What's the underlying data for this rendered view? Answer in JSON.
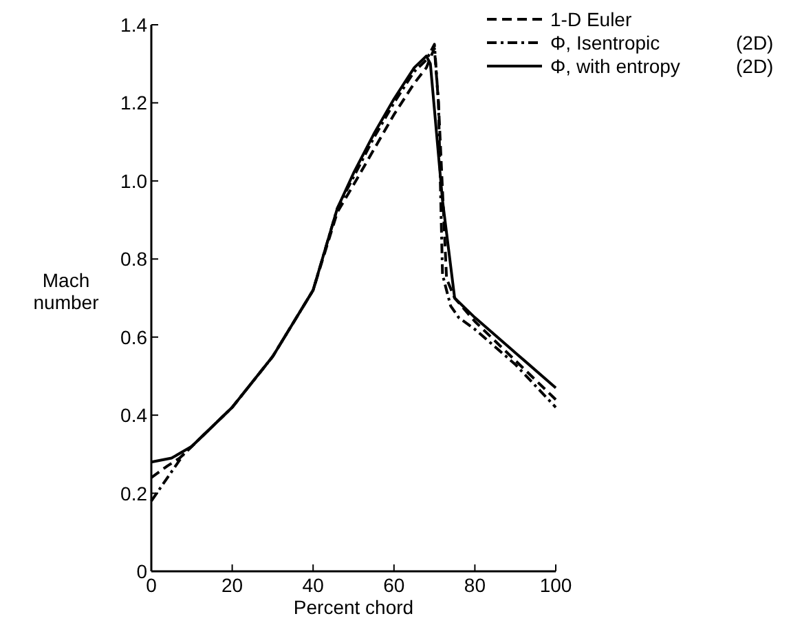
{
  "chart_data": {
    "type": "line",
    "xlabel": "Percent chord",
    "ylabel": "Mach number",
    "xlim": [
      0,
      100
    ],
    "xticks": [
      0,
      20,
      40,
      60,
      80,
      100
    ],
    "ylim": [
      0,
      1.4
    ],
    "yticks": [
      0,
      0.2,
      0.4,
      0.6,
      0.8,
      {
        "value": 1,
        "label": "1.0"
      },
      1.2,
      1.4
    ],
    "grid": false,
    "legend": "top right",
    "series": [
      {
        "name": "1-D Euler",
        "color": "#000000",
        "line_style": "dashed",
        "x": [
          0,
          4,
          7,
          10,
          20,
          30,
          40,
          46,
          50,
          55,
          60,
          65,
          68,
          70,
          71,
          73,
          75,
          80,
          90,
          100
        ],
        "values": [
          0.24,
          0.27,
          0.29,
          0.32,
          0.42,
          0.55,
          0.72,
          0.92,
          0.99,
          1.08,
          1.17,
          1.25,
          1.29,
          1.34,
          1.2,
          0.75,
          0.7,
          0.64,
          0.54,
          0.44
        ]
      },
      {
        "name": "Φ, Isentropic (2D)",
        "color": "#000000",
        "line_style": "dashdot",
        "x": [
          0,
          4,
          8,
          10,
          20,
          30,
          40,
          46,
          50,
          55,
          60,
          65,
          68,
          70,
          71,
          72,
          74,
          76,
          80,
          90,
          100
        ],
        "values": [
          0.18,
          0.24,
          0.3,
          0.32,
          0.42,
          0.55,
          0.72,
          0.93,
          1.01,
          1.11,
          1.2,
          1.28,
          1.31,
          1.35,
          1.2,
          0.76,
          0.68,
          0.65,
          0.62,
          0.53,
          0.42
        ]
      },
      {
        "name": "Φ, with entropy (2D)",
        "color": "#000000",
        "line_style": "solid",
        "x": [
          0,
          5,
          10,
          20,
          30,
          40,
          46,
          50,
          55,
          60,
          65,
          68,
          69,
          72,
          75,
          80,
          90,
          100
        ],
        "values": [
          0.28,
          0.29,
          0.32,
          0.42,
          0.55,
          0.72,
          0.93,
          1.02,
          1.12,
          1.21,
          1.29,
          1.32,
          1.3,
          0.95,
          0.7,
          0.65,
          0.56,
          0.47
        ]
      }
    ]
  }
}
